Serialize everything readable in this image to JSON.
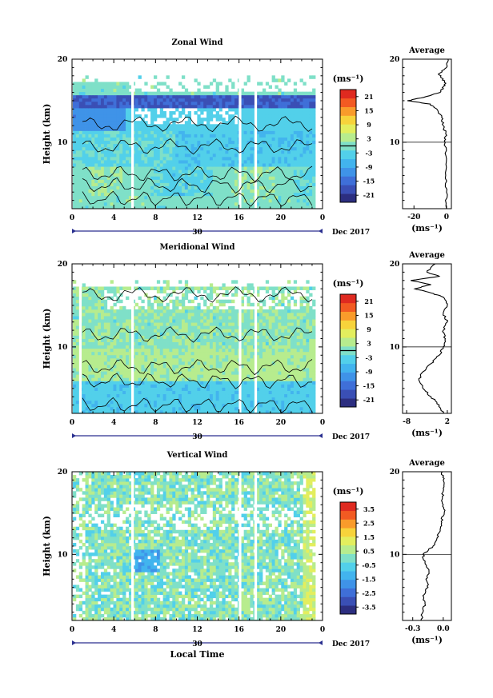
{
  "figure": {
    "xlabel": "Local Time",
    "date_label": "Dec 2017",
    "day_label": "30",
    "ylabel": "Height (km)",
    "unit_label": "(ms⁻¹)",
    "avg_title": "Average"
  },
  "chart_data": [
    {
      "type": "heatmap",
      "title": "Zonal Wind",
      "xlim": [
        0,
        24
      ],
      "ylim": [
        2,
        20
      ],
      "xticks": [
        "0",
        "4",
        "8",
        "12",
        "16",
        "20",
        "0"
      ],
      "yticks": [
        "20",
        "10"
      ],
      "colorbar": {
        "ticks": [
          "21",
          "15",
          "9",
          "3",
          "-3",
          "-9",
          "-15",
          "-21"
        ],
        "min": -24,
        "max": 24,
        "contour_level": 0
      },
      "data_top_km": 17.2,
      "jet_layer_km": [
        14.0,
        15.8
      ],
      "gaps_hours": [
        5.8,
        16.1,
        17.6
      ],
      "average": {
        "xticks": [
          "-20",
          "0"
        ],
        "xlim": [
          -27,
          3
        ],
        "heights": [
          2,
          4,
          6,
          8,
          10,
          11,
          12,
          13,
          14,
          14.6,
          15,
          15.4,
          16,
          16.5,
          17,
          17.6,
          18.2,
          19,
          20
        ],
        "values": [
          0,
          0,
          -0.5,
          0,
          -0.8,
          -0.5,
          -2,
          -3,
          -6,
          -10,
          -24,
          -14,
          -4,
          -2,
          -1,
          -2,
          -5,
          0,
          1
        ]
      }
    },
    {
      "type": "heatmap",
      "title": "Meridional Wind",
      "xlim": [
        0,
        24
      ],
      "ylim": [
        2,
        20
      ],
      "xticks": [
        "0",
        "4",
        "8",
        "12",
        "16",
        "20",
        "0"
      ],
      "yticks": [
        "20",
        "10"
      ],
      "colorbar": {
        "ticks": [
          "21",
          "15",
          "9",
          "3",
          "-3",
          "-9",
          "-15",
          "-21"
        ],
        "min": -24,
        "max": 24,
        "contour_level": 0
      },
      "data_top_km": 17.2,
      "gaps_hours": [
        0.8,
        5.8,
        16.1,
        17.6
      ],
      "average": {
        "xticks": [
          "-8",
          "2"
        ],
        "xlim": [
          -9,
          3
        ],
        "heights": [
          2,
          3,
          4,
          5,
          6,
          7,
          8,
          9,
          10,
          11,
          12,
          13,
          14,
          15,
          16,
          16.5,
          17,
          17.5,
          18,
          18.5,
          19,
          20
        ],
        "values": [
          1,
          0,
          -2,
          -4,
          -5,
          -4,
          -2,
          0,
          1,
          1.5,
          1,
          2,
          1,
          2,
          1,
          -2,
          -6,
          -2,
          -7,
          0,
          -3,
          -1
        ]
      }
    },
    {
      "type": "heatmap",
      "title": "Vertical Wind",
      "xlim": [
        0,
        24
      ],
      "ylim": [
        2,
        20
      ],
      "xticks": [
        "0",
        "4",
        "8",
        "12",
        "16",
        "20",
        "0"
      ],
      "yticks": [
        "20",
        "10"
      ],
      "colorbar": {
        "ticks": [
          "3.5",
          "2.5",
          "1.5",
          "0.5",
          "-0.5",
          "-1.5",
          "-2.5",
          "-3.5"
        ],
        "min": -4,
        "max": 4,
        "contour_level": null
      },
      "data_top_km": 20,
      "gaps_hours": [
        5.8,
        16.1,
        17.6
      ],
      "average": {
        "xticks": [
          "-0.3",
          "0.0"
        ],
        "xlim": [
          -0.4,
          0.08
        ],
        "heights": [
          2,
          3,
          4,
          5,
          6,
          7,
          8,
          9,
          10,
          11,
          12,
          13,
          14,
          15,
          16,
          17,
          18,
          19,
          20
        ],
        "values": [
          -0.22,
          -0.2,
          -0.18,
          -0.2,
          -0.15,
          -0.17,
          -0.14,
          -0.18,
          -0.2,
          -0.1,
          -0.06,
          -0.03,
          -0.02,
          0.01,
          0.0,
          -0.01,
          0.0,
          0.0,
          -0.01
        ]
      }
    }
  ]
}
